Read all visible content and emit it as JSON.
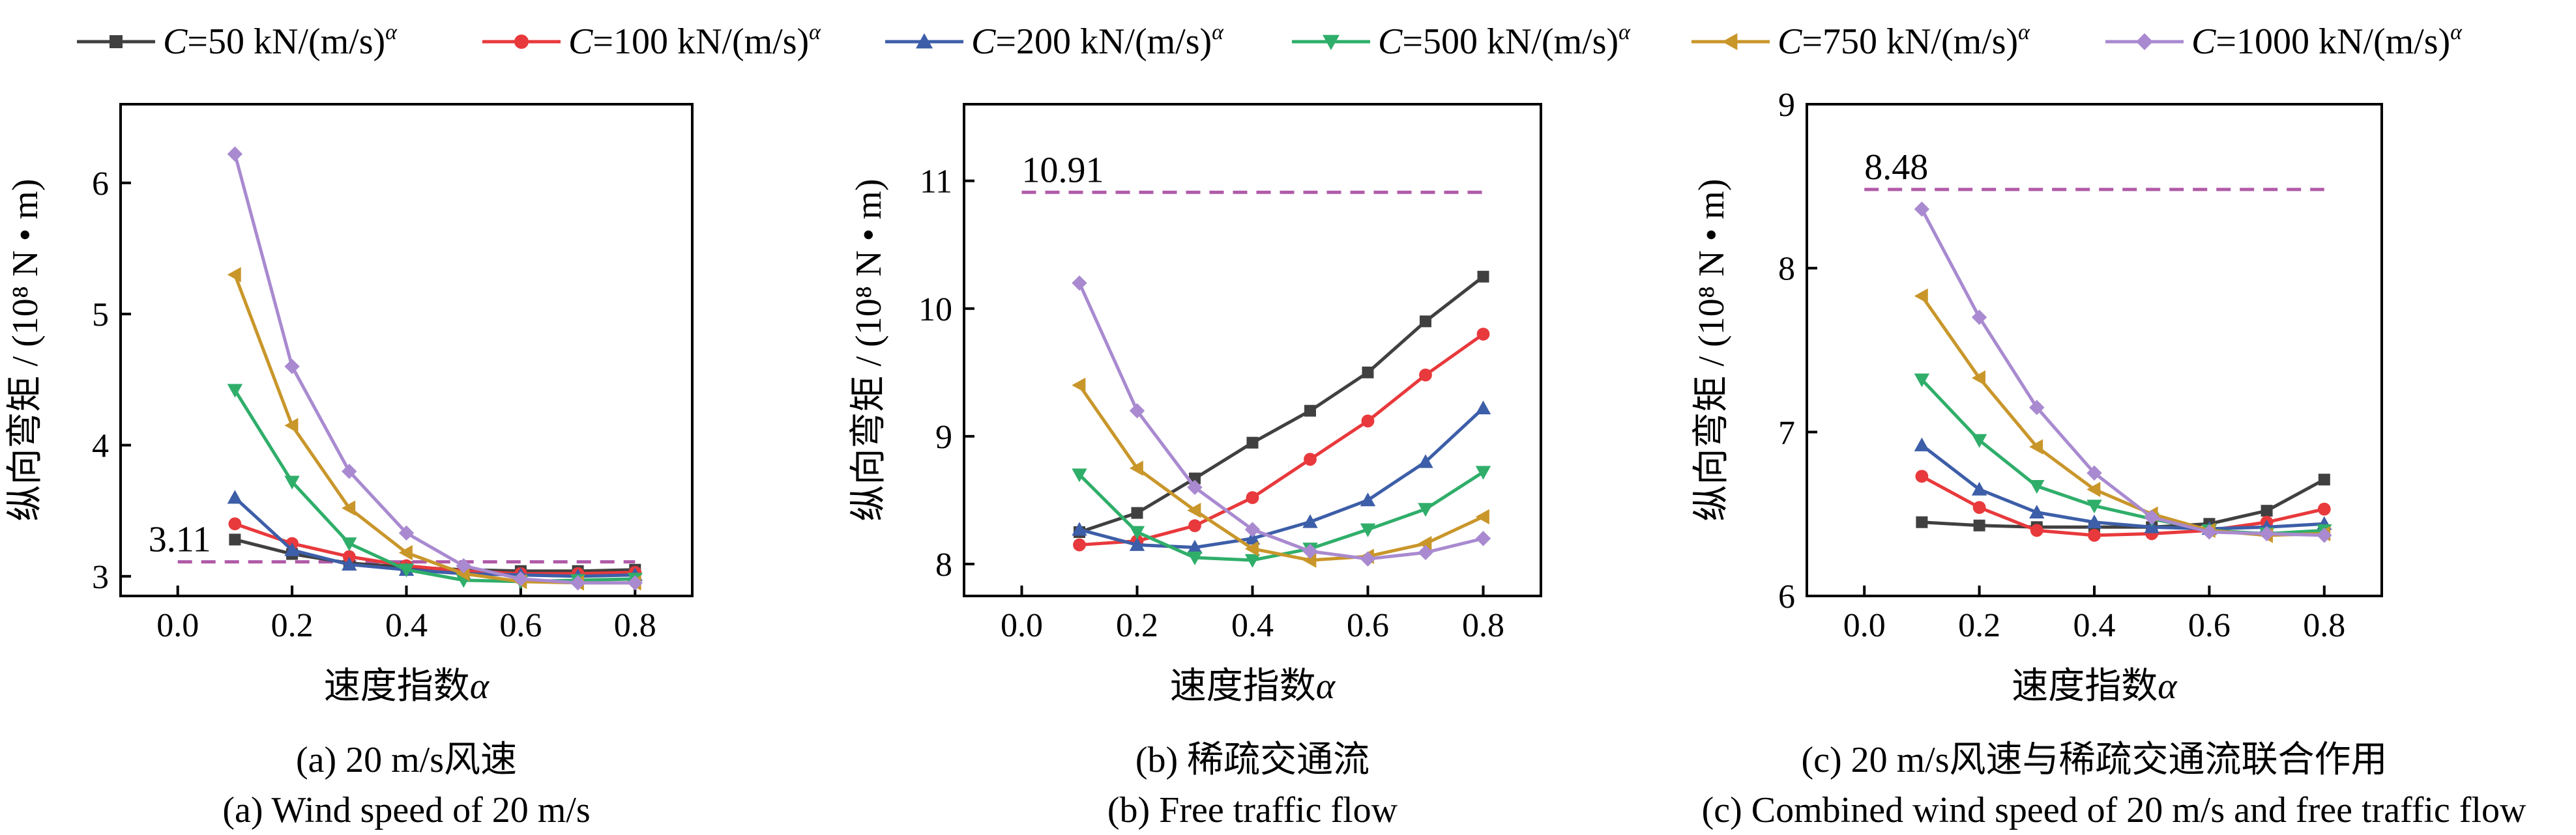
{
  "legend": [
    {
      "prefix": "C",
      "suffix": "=50 kN/(m/s)",
      "sup": "α",
      "color": "#404040",
      "marker": "square"
    },
    {
      "prefix": "C",
      "suffix": "=100 kN/(m/s)",
      "sup": "α",
      "color": "#e8393c",
      "marker": "circle"
    },
    {
      "prefix": "C",
      "suffix": "=200 kN/(m/s)",
      "sup": "α",
      "color": "#3d5ea8",
      "marker": "triangle-up"
    },
    {
      "prefix": "C",
      "suffix": "=500 kN/(m/s)",
      "sup": "α",
      "color": "#2fae6a",
      "marker": "triangle-down"
    },
    {
      "prefix": "C",
      "suffix": "=750 kN/(m/s)",
      "sup": "α",
      "color": "#c9962a",
      "marker": "triangle-left"
    },
    {
      "prefix": "C",
      "suffix": "=1000 kN/(m/s)",
      "sup": "α",
      "color": "#a98ad0",
      "marker": "diamond"
    }
  ],
  "chart_data": [
    {
      "type": "line",
      "xlabel": "速度指数α",
      "ylabel": "纵向弯矩 / (10⁸ N • m)",
      "xlim": [
        -0.1,
        0.9
      ],
      "ylim": [
        2.85,
        6.6
      ],
      "xticks": [
        "0.0",
        "0.2",
        "0.4",
        "0.6",
        "0.8"
      ],
      "yticks": [
        "3",
        "4",
        "5",
        "6"
      ],
      "x": [
        0.1,
        0.2,
        0.3,
        0.4,
        0.5,
        0.6,
        0.7,
        0.8
      ],
      "reference": {
        "value": 3.11,
        "label": "3.11",
        "x_range": [
          0.0,
          0.8
        ],
        "color": "#b05aa8"
      },
      "series": [
        {
          "values": [
            3.28,
            3.17,
            3.1,
            3.07,
            3.05,
            3.04,
            3.04,
            3.05
          ]
        },
        {
          "values": [
            3.4,
            3.25,
            3.15,
            3.08,
            3.04,
            3.02,
            3.02,
            3.03
          ]
        },
        {
          "values": [
            3.6,
            3.2,
            3.09,
            3.05,
            3.02,
            3.01,
            3.0,
            3.01
          ]
        },
        {
          "values": [
            4.42,
            3.72,
            3.25,
            3.05,
            2.97,
            2.96,
            2.97,
            2.98
          ]
        },
        {
          "values": [
            5.3,
            4.15,
            3.52,
            3.18,
            3.02,
            2.96,
            2.95,
            2.95
          ]
        },
        {
          "values": [
            6.22,
            4.6,
            3.8,
            3.33,
            3.08,
            2.98,
            2.95,
            2.95
          ]
        }
      ],
      "caption_cn": "(a) 20 m/s风速",
      "caption_en": "(a) Wind speed of 20 m/s"
    },
    {
      "type": "line",
      "xlabel": "速度指数α",
      "ylabel": "纵向弯矩 / (10⁸ N • m)",
      "xlim": [
        -0.1,
        0.9
      ],
      "ylim": [
        7.75,
        11.6
      ],
      "xticks": [
        "0.0",
        "0.2",
        "0.4",
        "0.6",
        "0.8"
      ],
      "yticks": [
        "8",
        "9",
        "10",
        "11"
      ],
      "x": [
        0.1,
        0.2,
        0.3,
        0.4,
        0.5,
        0.6,
        0.7,
        0.8
      ],
      "reference": {
        "value": 10.91,
        "label": "10.91",
        "x_range": [
          0.0,
          0.8
        ],
        "color": "#b05aa8"
      },
      "series": [
        {
          "values": [
            8.25,
            8.4,
            8.67,
            8.95,
            9.2,
            9.5,
            9.9,
            10.25
          ]
        },
        {
          "values": [
            8.15,
            8.18,
            8.3,
            8.52,
            8.82,
            9.12,
            9.48,
            9.8
          ]
        },
        {
          "values": [
            8.27,
            8.15,
            8.13,
            8.2,
            8.33,
            8.5,
            8.8,
            9.22
          ]
        },
        {
          "values": [
            8.7,
            8.25,
            8.05,
            8.03,
            8.12,
            8.27,
            8.43,
            8.72
          ]
        },
        {
          "values": [
            9.4,
            8.75,
            8.42,
            8.12,
            8.03,
            8.06,
            8.16,
            8.37
          ]
        },
        {
          "values": [
            10.2,
            9.2,
            8.6,
            8.27,
            8.1,
            8.04,
            8.09,
            8.2
          ]
        }
      ],
      "caption_cn": "(b) 稀疏交通流",
      "caption_en": "(b) Free traffic flow"
    },
    {
      "type": "line",
      "xlabel": "速度指数α",
      "ylabel": "纵向弯矩 / (10⁸ N • m)",
      "xlim": [
        -0.1,
        0.9
      ],
      "ylim": [
        6.0,
        9.0
      ],
      "xticks": [
        "0.0",
        "0.2",
        "0.4",
        "0.6",
        "0.8"
      ],
      "yticks": [
        "6",
        "7",
        "8",
        "9"
      ],
      "x": [
        0.1,
        0.2,
        0.3,
        0.4,
        0.5,
        0.6,
        0.7,
        0.8
      ],
      "reference": {
        "value": 8.48,
        "label": "8.48",
        "x_range": [
          0.0,
          0.8
        ],
        "color": "#b05aa8"
      },
      "series": [
        {
          "values": [
            6.45,
            6.43,
            6.42,
            6.42,
            6.42,
            6.44,
            6.52,
            6.71
          ]
        },
        {
          "values": [
            6.73,
            6.54,
            6.4,
            6.37,
            6.38,
            6.4,
            6.45,
            6.53
          ]
        },
        {
          "values": [
            6.92,
            6.65,
            6.51,
            6.45,
            6.42,
            6.41,
            6.42,
            6.44
          ]
        },
        {
          "values": [
            7.32,
            6.95,
            6.67,
            6.55,
            6.47,
            6.4,
            6.38,
            6.4
          ]
        },
        {
          "values": [
            7.83,
            7.33,
            6.91,
            6.65,
            6.5,
            6.4,
            6.37,
            6.38
          ]
        },
        {
          "values": [
            8.36,
            7.7,
            7.15,
            6.75,
            6.48,
            6.39,
            6.38,
            6.37
          ]
        }
      ],
      "caption_cn": "(c) 20 m/s风速与稀疏交通流联合作用",
      "caption_en": "(c) Combined wind speed of 20 m/s and free traffic flow"
    }
  ]
}
